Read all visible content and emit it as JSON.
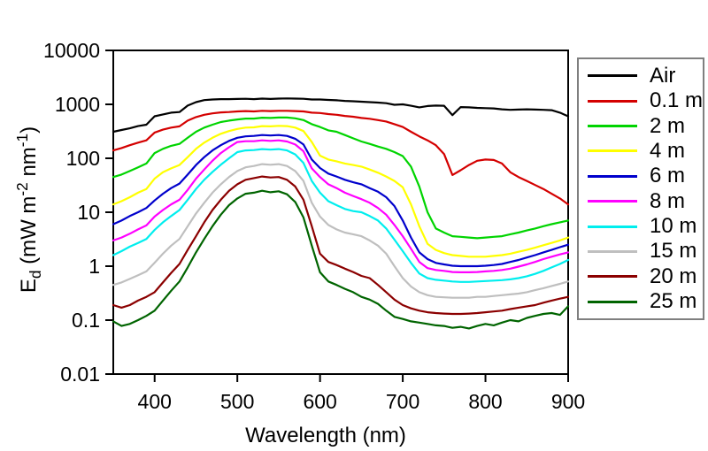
{
  "figure": {
    "background": "#ffffff",
    "frame_color": "#000000",
    "legend_border_color": "#7f7f7f"
  },
  "y_axis_title": {
    "symbol": "E",
    "subscript": "d",
    "unit_open": " (mW m",
    "sup1": "-2",
    "unit_mid": " nm",
    "sup2": "-1",
    "unit_close": ")"
  },
  "chart_data": {
    "type": "line",
    "title": "",
    "xlabel": "Wavelength (nm)",
    "ylabel": "Ed (mW m-2 nm-1)",
    "x_scale": "linear",
    "y_scale": "log",
    "xlim": [
      350,
      900
    ],
    "ylim": [
      0.01,
      10000
    ],
    "x_ticks": [
      400,
      500,
      600,
      700,
      800,
      900
    ],
    "y_ticks": [
      10000,
      1000,
      100,
      10,
      1,
      0.1,
      0.01
    ],
    "y_tick_labels": [
      "10000",
      "1000",
      "100",
      "10",
      "1",
      "0.1",
      "0.01"
    ],
    "grid": false,
    "legend_position": "outside-right",
    "x": [
      350,
      360,
      370,
      380,
      390,
      400,
      410,
      420,
      430,
      440,
      450,
      460,
      470,
      480,
      490,
      500,
      510,
      520,
      530,
      540,
      550,
      560,
      570,
      580,
      590,
      600,
      610,
      620,
      630,
      640,
      650,
      660,
      670,
      680,
      690,
      700,
      710,
      720,
      730,
      740,
      750,
      760,
      770,
      780,
      790,
      800,
      810,
      820,
      830,
      840,
      850,
      860,
      870,
      880,
      890,
      900
    ],
    "series": [
      {
        "name": "Air",
        "color": "#000000",
        "values": [
          310,
          335,
          360,
          395,
          420,
          600,
          650,
          700,
          720,
          950,
          1100,
          1200,
          1230,
          1250,
          1250,
          1260,
          1270,
          1250,
          1280,
          1260,
          1280,
          1290,
          1280,
          1270,
          1230,
          1230,
          1210,
          1190,
          1160,
          1140,
          1120,
          1100,
          1080,
          1050,
          980,
          1000,
          940,
          880,
          930,
          950,
          940,
          630,
          890,
          880,
          860,
          850,
          840,
          810,
          790,
          800,
          810,
          800,
          790,
          780,
          700,
          600
        ]
      },
      {
        "name": "0.1 m",
        "color": "#d40000",
        "values": [
          140,
          155,
          175,
          195,
          215,
          300,
          340,
          370,
          390,
          500,
          580,
          640,
          680,
          710,
          720,
          740,
          750,
          740,
          760,
          750,
          760,
          760,
          750,
          740,
          700,
          690,
          660,
          640,
          610,
          590,
          560,
          540,
          510,
          480,
          430,
          380,
          310,
          255,
          215,
          175,
          120,
          49,
          60,
          75,
          90,
          95,
          93,
          80,
          55,
          45,
          38,
          32,
          27,
          22,
          18,
          14
        ]
      },
      {
        "name": "2 m",
        "color": "#00d400",
        "values": [
          45,
          50,
          58,
          68,
          80,
          125,
          150,
          170,
          185,
          240,
          310,
          370,
          420,
          470,
          500,
          525,
          545,
          545,
          565,
          560,
          570,
          570,
          550,
          510,
          430,
          380,
          330,
          310,
          270,
          235,
          205,
          185,
          165,
          150,
          130,
          110,
          70,
          30,
          10,
          5,
          4.2,
          3.6,
          3.5,
          3.4,
          3.3,
          3.4,
          3.5,
          3.6,
          3.9,
          4.2,
          4.6,
          5.0,
          5.5,
          6.0,
          6.5,
          7.0
        ]
      },
      {
        "name": "4 m",
        "color": "#ffff00",
        "values": [
          14,
          16,
          19,
          23,
          27,
          42,
          55,
          65,
          75,
          105,
          150,
          195,
          240,
          285,
          320,
          350,
          370,
          375,
          395,
          390,
          400,
          395,
          370,
          320,
          200,
          112,
          95,
          88,
          80,
          75,
          70,
          62,
          54,
          46,
          38,
          29,
          14,
          5.5,
          2.6,
          2.0,
          1.75,
          1.6,
          1.55,
          1.5,
          1.5,
          1.5,
          1.55,
          1.6,
          1.7,
          1.85,
          2.0,
          2.2,
          2.45,
          2.7,
          3.0,
          3.4
        ]
      },
      {
        "name": "6 m",
        "color": "#0000cc",
        "values": [
          6,
          7,
          8.5,
          10,
          12,
          16.5,
          22,
          28,
          34,
          50,
          75,
          105,
          140,
          175,
          210,
          240,
          255,
          260,
          270,
          265,
          270,
          260,
          230,
          180,
          95,
          66,
          52,
          46,
          40,
          36,
          33,
          28,
          24,
          19,
          13,
          7,
          3.4,
          1.8,
          1.35,
          1.15,
          1.08,
          1.02,
          1.0,
          1.0,
          1.0,
          1.02,
          1.05,
          1.1,
          1.2,
          1.3,
          1.45,
          1.6,
          1.8,
          2.0,
          2.25,
          2.5
        ]
      },
      {
        "name": "8 m",
        "color": "#ff00ff",
        "values": [
          3.0,
          3.4,
          4.0,
          4.8,
          5.7,
          8.3,
          11,
          14,
          17,
          26,
          42,
          62,
          90,
          125,
          160,
          200,
          207,
          207,
          215,
          210,
          215,
          205,
          180,
          135,
          65,
          45,
          33,
          28,
          23,
          20,
          17.5,
          15,
          12,
          9,
          5.8,
          3.6,
          2.1,
          1.2,
          0.92,
          0.85,
          0.82,
          0.78,
          0.77,
          0.77,
          0.78,
          0.8,
          0.82,
          0.85,
          0.9,
          0.98,
          1.08,
          1.2,
          1.35,
          1.5,
          1.65,
          1.8
        ]
      },
      {
        "name": "10 m",
        "color": "#00eeee",
        "values": [
          1.6,
          1.9,
          2.3,
          2.7,
          3.2,
          4.7,
          6.5,
          8.5,
          11,
          17,
          27,
          40,
          56,
          76,
          100,
          130,
          140,
          142,
          148,
          145,
          148,
          140,
          118,
          82,
          38,
          23,
          16,
          13.5,
          11.5,
          10.5,
          10,
          8.5,
          7,
          5,
          3.1,
          1.9,
          1.15,
          0.73,
          0.6,
          0.56,
          0.54,
          0.52,
          0.51,
          0.51,
          0.52,
          0.53,
          0.54,
          0.55,
          0.57,
          0.6,
          0.65,
          0.72,
          0.82,
          0.95,
          1.1,
          1.3
        ]
      },
      {
        "name": "15 m",
        "color": "#bfbfbf",
        "values": [
          0.45,
          0.5,
          0.58,
          0.68,
          0.8,
          1.16,
          1.7,
          2.4,
          3.2,
          5.5,
          9.5,
          15,
          23,
          33,
          45,
          58,
          68,
          72,
          78,
          76,
          78,
          72,
          58,
          38,
          15,
          8.3,
          5.8,
          4.8,
          4.2,
          3.9,
          3.6,
          3.0,
          2.4,
          1.7,
          1.0,
          0.6,
          0.42,
          0.33,
          0.29,
          0.27,
          0.265,
          0.26,
          0.26,
          0.26,
          0.27,
          0.27,
          0.28,
          0.29,
          0.3,
          0.31,
          0.33,
          0.36,
          0.39,
          0.43,
          0.47,
          0.52
        ]
      },
      {
        "name": "20 m",
        "color": "#8b0000",
        "values": [
          0.19,
          0.17,
          0.19,
          0.23,
          0.27,
          0.33,
          0.5,
          0.75,
          1.1,
          2.0,
          3.6,
          6.5,
          11,
          17,
          25,
          33,
          40,
          43,
          46,
          44,
          45,
          40,
          30,
          17,
          5.5,
          1.7,
          1.2,
          1.05,
          0.9,
          0.78,
          0.66,
          0.6,
          0.45,
          0.33,
          0.24,
          0.19,
          0.165,
          0.15,
          0.14,
          0.135,
          0.132,
          0.13,
          0.13,
          0.132,
          0.135,
          0.14,
          0.145,
          0.15,
          0.16,
          0.17,
          0.18,
          0.19,
          0.21,
          0.23,
          0.25,
          0.27
        ]
      },
      {
        "name": "25 m",
        "color": "#006400",
        "values": [
          0.095,
          0.078,
          0.085,
          0.1,
          0.12,
          0.15,
          0.23,
          0.35,
          0.52,
          0.95,
          1.8,
          3.2,
          5.5,
          9,
          13.5,
          18,
          22,
          23,
          25,
          23.5,
          24.5,
          21.5,
          15.5,
          8,
          2.4,
          0.77,
          0.52,
          0.45,
          0.38,
          0.33,
          0.27,
          0.24,
          0.2,
          0.15,
          0.115,
          0.105,
          0.095,
          0.09,
          0.085,
          0.08,
          0.078,
          0.072,
          0.075,
          0.07,
          0.078,
          0.085,
          0.08,
          0.09,
          0.1,
          0.095,
          0.11,
          0.12,
          0.13,
          0.135,
          0.125,
          0.18
        ]
      }
    ]
  }
}
